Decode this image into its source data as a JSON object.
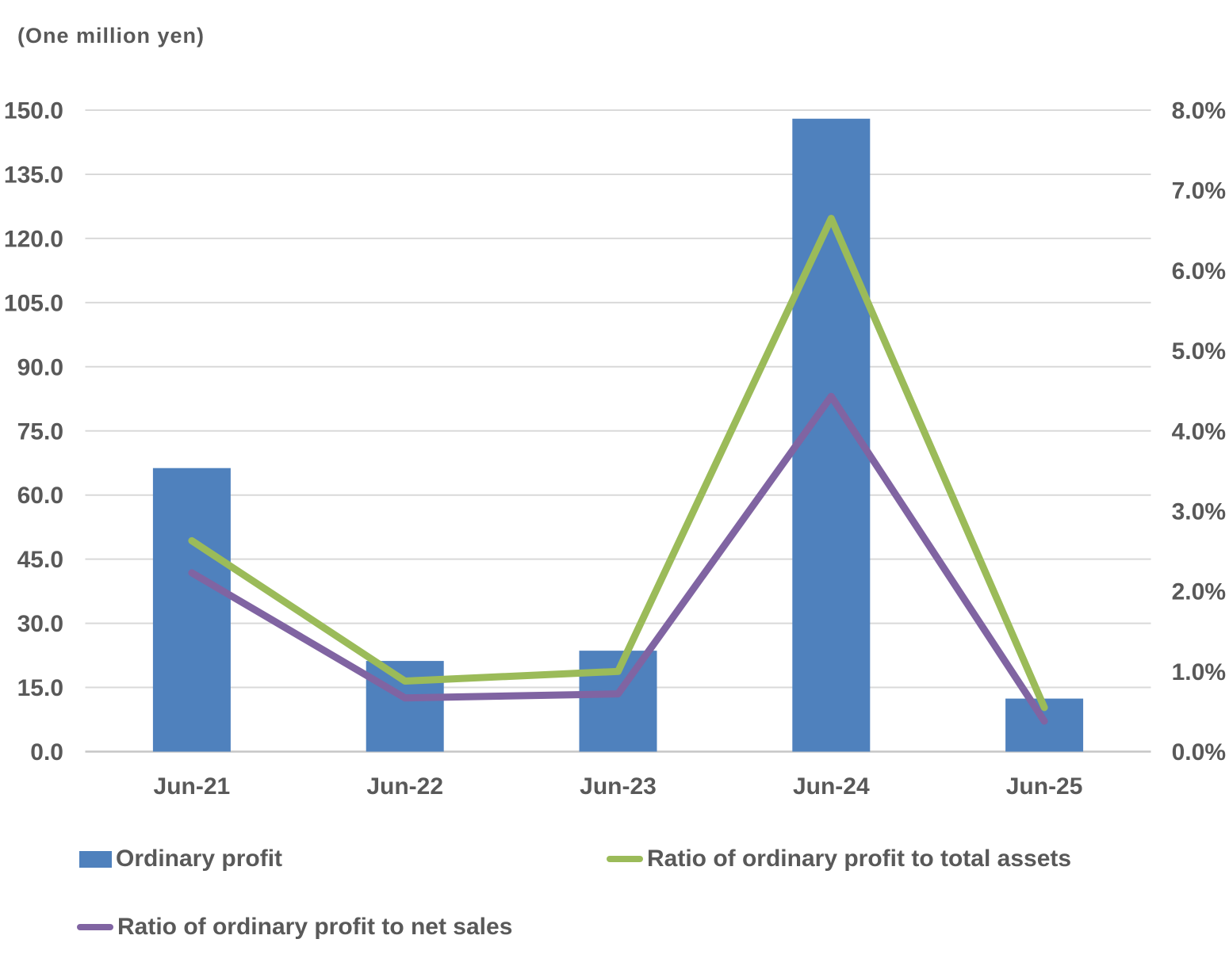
{
  "chart_data": {
    "type": "combo-bar-line",
    "title": "(One million yen)",
    "categories": [
      "Jun-21",
      "Jun-22",
      "Jun-23",
      "Jun-24",
      "Jun-25"
    ],
    "series": [
      {
        "name": "Ordinary profit",
        "type": "bar",
        "axis": "left",
        "color": "#4F81BD",
        "values": [
          66.3,
          21.2,
          23.6,
          148.0,
          12.4
        ]
      },
      {
        "name": "Ratio of ordinary profit to total assets",
        "type": "line",
        "axis": "right",
        "color": "#9BBB59",
        "values": [
          2.63,
          0.88,
          1.0,
          6.65,
          0.55
        ]
      },
      {
        "name": "Ratio of ordinary profit to net sales",
        "type": "line",
        "axis": "right",
        "color": "#8064A2",
        "values": [
          2.23,
          0.67,
          0.72,
          4.43,
          0.38
        ]
      }
    ],
    "left_axis": {
      "title": "(One million yen)",
      "min": 0,
      "max": 150,
      "step": 15,
      "tick_labels": [
        "0.0",
        "15.0",
        "30.0",
        "45.0",
        "60.0",
        "75.0",
        "90.0",
        "105.0",
        "120.0",
        "135.0",
        "150.0"
      ]
    },
    "right_axis": {
      "min": 0,
      "max": 8,
      "step": 1,
      "tick_labels": [
        "0.0%",
        "1.0%",
        "2.0%",
        "3.0%",
        "4.0%",
        "5.0%",
        "6.0%",
        "7.0%",
        "8.0%"
      ]
    },
    "grid": true,
    "legend_position": "bottom"
  },
  "colors": {
    "text": "#595959",
    "gridline": "#D9D9D9",
    "axis_line": "#C6C6C6",
    "background": "#FFFFFF"
  }
}
